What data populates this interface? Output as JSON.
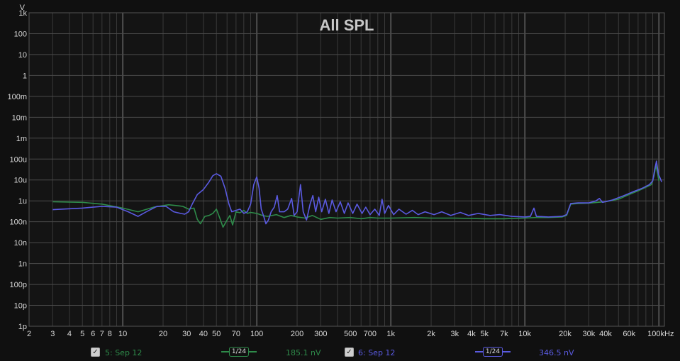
{
  "chart_data": {
    "type": "line",
    "title": "All SPL",
    "ylabel": "V",
    "x_scale": "log",
    "y_scale": "log",
    "xlim": [
      2,
      110000
    ],
    "ylim": [
      1e-12,
      1000
    ],
    "x_ticks": [
      {
        "v": 2,
        "label": "2"
      },
      {
        "v": 3,
        "label": "3"
      },
      {
        "v": 4,
        "label": "4"
      },
      {
        "v": 5,
        "label": "5"
      },
      {
        "v": 6,
        "label": "6"
      },
      {
        "v": 7,
        "label": "7"
      },
      {
        "v": 8,
        "label": "8"
      },
      {
        "v": 10,
        "label": "10"
      },
      {
        "v": 20,
        "label": "20"
      },
      {
        "v": 30,
        "label": "30"
      },
      {
        "v": 40,
        "label": "40"
      },
      {
        "v": 50,
        "label": "50"
      },
      {
        "v": 70,
        "label": "70"
      },
      {
        "v": 100,
        "label": "100"
      },
      {
        "v": 200,
        "label": "200"
      },
      {
        "v": 300,
        "label": "300"
      },
      {
        "v": 500,
        "label": "500"
      },
      {
        "v": 700,
        "label": "700"
      },
      {
        "v": 1000,
        "label": "1k"
      },
      {
        "v": 2000,
        "label": "2k"
      },
      {
        "v": 3000,
        "label": "3k"
      },
      {
        "v": 4000,
        "label": "4k"
      },
      {
        "v": 5000,
        "label": "5k"
      },
      {
        "v": 7000,
        "label": "7k"
      },
      {
        "v": 10000,
        "label": "10k"
      },
      {
        "v": 20000,
        "label": "20k"
      },
      {
        "v": 30000,
        "label": "30k"
      },
      {
        "v": 40000,
        "label": "40k"
      },
      {
        "v": 60000,
        "label": "60k"
      },
      {
        "v": 100000,
        "label": "100kHz"
      }
    ],
    "y_ticks": [
      {
        "v": 1000.0,
        "label": "1k"
      },
      {
        "v": 100.0,
        "label": "100"
      },
      {
        "v": 10.0,
        "label": "10"
      },
      {
        "v": 1,
        "label": "1"
      },
      {
        "v": 0.1,
        "label": "100m"
      },
      {
        "v": 0.01,
        "label": "10m"
      },
      {
        "v": 0.001,
        "label": "1m"
      },
      {
        "v": 0.0001,
        "label": "100u"
      },
      {
        "v": 1e-05,
        "label": "10u"
      },
      {
        "v": 1e-06,
        "label": "1u"
      },
      {
        "v": 1e-07,
        "label": "100n"
      },
      {
        "v": 1e-08,
        "label": "10n"
      },
      {
        "v": 1e-09,
        "label": "1n"
      },
      {
        "v": 1e-10,
        "label": "100p"
      },
      {
        "v": 1e-11,
        "label": "10p"
      },
      {
        "v": 1e-12,
        "label": "1p"
      }
    ],
    "grid": true,
    "series": [
      {
        "name": "5: Sep 12",
        "color": "#2e8b4a",
        "points": [
          [
            3,
            9e-07
          ],
          [
            5,
            8.5e-07
          ],
          [
            7,
            7e-07
          ],
          [
            10,
            4.5e-07
          ],
          [
            13,
            3e-07
          ],
          [
            17,
            5e-07
          ],
          [
            22,
            6.5e-07
          ],
          [
            28,
            5.5e-07
          ],
          [
            31,
            4e-07
          ],
          [
            34,
            4.5e-07
          ],
          [
            36,
            1.3e-07
          ],
          [
            38,
            8e-08
          ],
          [
            41,
            1.8e-07
          ],
          [
            44,
            2e-07
          ],
          [
            47,
            2.5e-07
          ],
          [
            50,
            4e-07
          ],
          [
            53,
            1.5e-07
          ],
          [
            56,
            5.5e-08
          ],
          [
            60,
            1.2e-07
          ],
          [
            63,
            2e-07
          ],
          [
            66,
            7e-08
          ],
          [
            70,
            3e-07
          ],
          [
            75,
            2.7e-07
          ],
          [
            80,
            3.5e-07
          ],
          [
            85,
            2.5e-07
          ],
          [
            90,
            2.8e-07
          ],
          [
            100,
            2.5e-07
          ],
          [
            110,
            2e-07
          ],
          [
            120,
            1.8e-07
          ],
          [
            140,
            2.2e-07
          ],
          [
            160,
            1.6e-07
          ],
          [
            180,
            2e-07
          ],
          [
            200,
            1.7e-07
          ],
          [
            230,
            1.5e-07
          ],
          [
            260,
            2e-07
          ],
          [
            300,
            1.3e-07
          ],
          [
            350,
            1.6e-07
          ],
          [
            400,
            1.5e-07
          ],
          [
            500,
            1.6e-07
          ],
          [
            600,
            1.4e-07
          ],
          [
            700,
            1.6e-07
          ],
          [
            800,
            1.5e-07
          ],
          [
            1000,
            1.5e-07
          ],
          [
            1500,
            1.6e-07
          ],
          [
            2000,
            1.5e-07
          ],
          [
            3000,
            1.5e-07
          ],
          [
            5000,
            1.4e-07
          ],
          [
            7000,
            1.4e-07
          ],
          [
            10000,
            1.5e-07
          ],
          [
            12000,
            1.6e-07
          ],
          [
            15000,
            1.6e-07
          ],
          [
            19000,
            1.7e-07
          ],
          [
            20500,
            2e-07
          ],
          [
            22000,
            7e-07
          ],
          [
            25000,
            7.5e-07
          ],
          [
            30000,
            7.8e-07
          ],
          [
            35000,
            8.5e-07
          ],
          [
            40000,
            9e-07
          ],
          [
            50000,
            1.2e-06
          ],
          [
            60000,
            2e-06
          ],
          [
            70000,
            3e-06
          ],
          [
            80000,
            4.5e-06
          ],
          [
            88000,
            6e-06
          ],
          [
            92000,
            1.5e-05
          ],
          [
            95000,
            5e-05
          ],
          [
            98000,
            2e-05
          ],
          [
            100000,
            9e-06
          ]
        ]
      },
      {
        "name": "6: Sep 12",
        "color": "#5a5ae0",
        "points": [
          [
            3,
            3.8e-07
          ],
          [
            5,
            4.5e-07
          ],
          [
            7,
            5.5e-07
          ],
          [
            9,
            5e-07
          ],
          [
            11,
            3e-07
          ],
          [
            13,
            1.8e-07
          ],
          [
            15,
            3e-07
          ],
          [
            18,
            5.5e-07
          ],
          [
            21,
            5.5e-07
          ],
          [
            24,
            3e-07
          ],
          [
            27,
            2.5e-07
          ],
          [
            29,
            2.3e-07
          ],
          [
            31,
            3e-07
          ],
          [
            33,
            7e-07
          ],
          [
            36,
            2e-06
          ],
          [
            40,
            3.5e-06
          ],
          [
            44,
            8e-06
          ],
          [
            47,
            1.6e-05
          ],
          [
            50,
            2e-05
          ],
          [
            54,
            1.5e-05
          ],
          [
            58,
            4e-06
          ],
          [
            62,
            7e-07
          ],
          [
            65,
            3e-07
          ],
          [
            70,
            3.5e-07
          ],
          [
            75,
            4e-07
          ],
          [
            80,
            2.5e-07
          ],
          [
            85,
            3e-07
          ],
          [
            90,
            7e-07
          ],
          [
            95,
            6e-06
          ],
          [
            100,
            1.4e-05
          ],
          [
            104,
            4e-06
          ],
          [
            108,
            4e-07
          ],
          [
            113,
            1.7e-07
          ],
          [
            117,
            8e-08
          ],
          [
            122,
            1.2e-07
          ],
          [
            128,
            3e-07
          ],
          [
            135,
            5e-07
          ],
          [
            142,
            1.8e-06
          ],
          [
            148,
            3e-07
          ],
          [
            160,
            3e-07
          ],
          [
            170,
            4e-07
          ],
          [
            182,
            1.3e-06
          ],
          [
            190,
            2e-07
          ],
          [
            200,
            3e-07
          ],
          [
            212,
            6e-06
          ],
          [
            222,
            3e-07
          ],
          [
            235,
            1.2e-07
          ],
          [
            250,
            7e-07
          ],
          [
            262,
            1.8e-06
          ],
          [
            275,
            3e-07
          ],
          [
            290,
            1.5e-06
          ],
          [
            305,
            3e-07
          ],
          [
            325,
            1.2e-06
          ],
          [
            345,
            2.5e-07
          ],
          [
            365,
            1.1e-06
          ],
          [
            390,
            3e-07
          ],
          [
            420,
            9e-07
          ],
          [
            450,
            2.5e-07
          ],
          [
            480,
            8e-07
          ],
          [
            520,
            2.5e-07
          ],
          [
            560,
            7e-07
          ],
          [
            610,
            2.5e-07
          ],
          [
            650,
            5e-07
          ],
          [
            700,
            2.2e-07
          ],
          [
            760,
            4e-07
          ],
          [
            820,
            2e-07
          ],
          [
            860,
            1.2e-06
          ],
          [
            900,
            2.5e-07
          ],
          [
            960,
            6e-07
          ],
          [
            1050,
            2.2e-07
          ],
          [
            1150,
            4e-07
          ],
          [
            1300,
            2.3e-07
          ],
          [
            1450,
            3.5e-07
          ],
          [
            1600,
            2.2e-07
          ],
          [
            1800,
            3e-07
          ],
          [
            2100,
            2.2e-07
          ],
          [
            2400,
            3e-07
          ],
          [
            2800,
            2e-07
          ],
          [
            3300,
            2.8e-07
          ],
          [
            3800,
            2e-07
          ],
          [
            4500,
            2.5e-07
          ],
          [
            5500,
            2e-07
          ],
          [
            6500,
            2.2e-07
          ],
          [
            8000,
            1.8e-07
          ],
          [
            10000,
            1.7e-07
          ],
          [
            11000,
            1.8e-07
          ],
          [
            11700,
            4.5e-07
          ],
          [
            12200,
            1.8e-07
          ],
          [
            15000,
            1.7e-07
          ],
          [
            19000,
            1.8e-07
          ],
          [
            20500,
            2.2e-07
          ],
          [
            22000,
            7.5e-07
          ],
          [
            25000,
            8e-07
          ],
          [
            30000,
            8e-07
          ],
          [
            34000,
            1e-06
          ],
          [
            36000,
            1.3e-06
          ],
          [
            38000,
            8.5e-07
          ],
          [
            45000,
            1.1e-06
          ],
          [
            55000,
            1.8e-06
          ],
          [
            65000,
            2.8e-06
          ],
          [
            75000,
            4e-06
          ],
          [
            85000,
            6e-06
          ],
          [
            90000,
            9e-06
          ],
          [
            93000,
            3e-05
          ],
          [
            96000,
            8e-05
          ],
          [
            99000,
            2e-05
          ],
          [
            105000,
            8e-06
          ]
        ]
      }
    ]
  },
  "legend": [
    {
      "checked": true,
      "label": "5: Sep 12",
      "smoothing": "1/24",
      "value": "185.1 nV",
      "color": "#2e8b4a"
    },
    {
      "checked": true,
      "label": "6: Sep 12",
      "smoothing": "1/24",
      "value": "346.5 nV",
      "color": "#5a5ae0"
    }
  ]
}
